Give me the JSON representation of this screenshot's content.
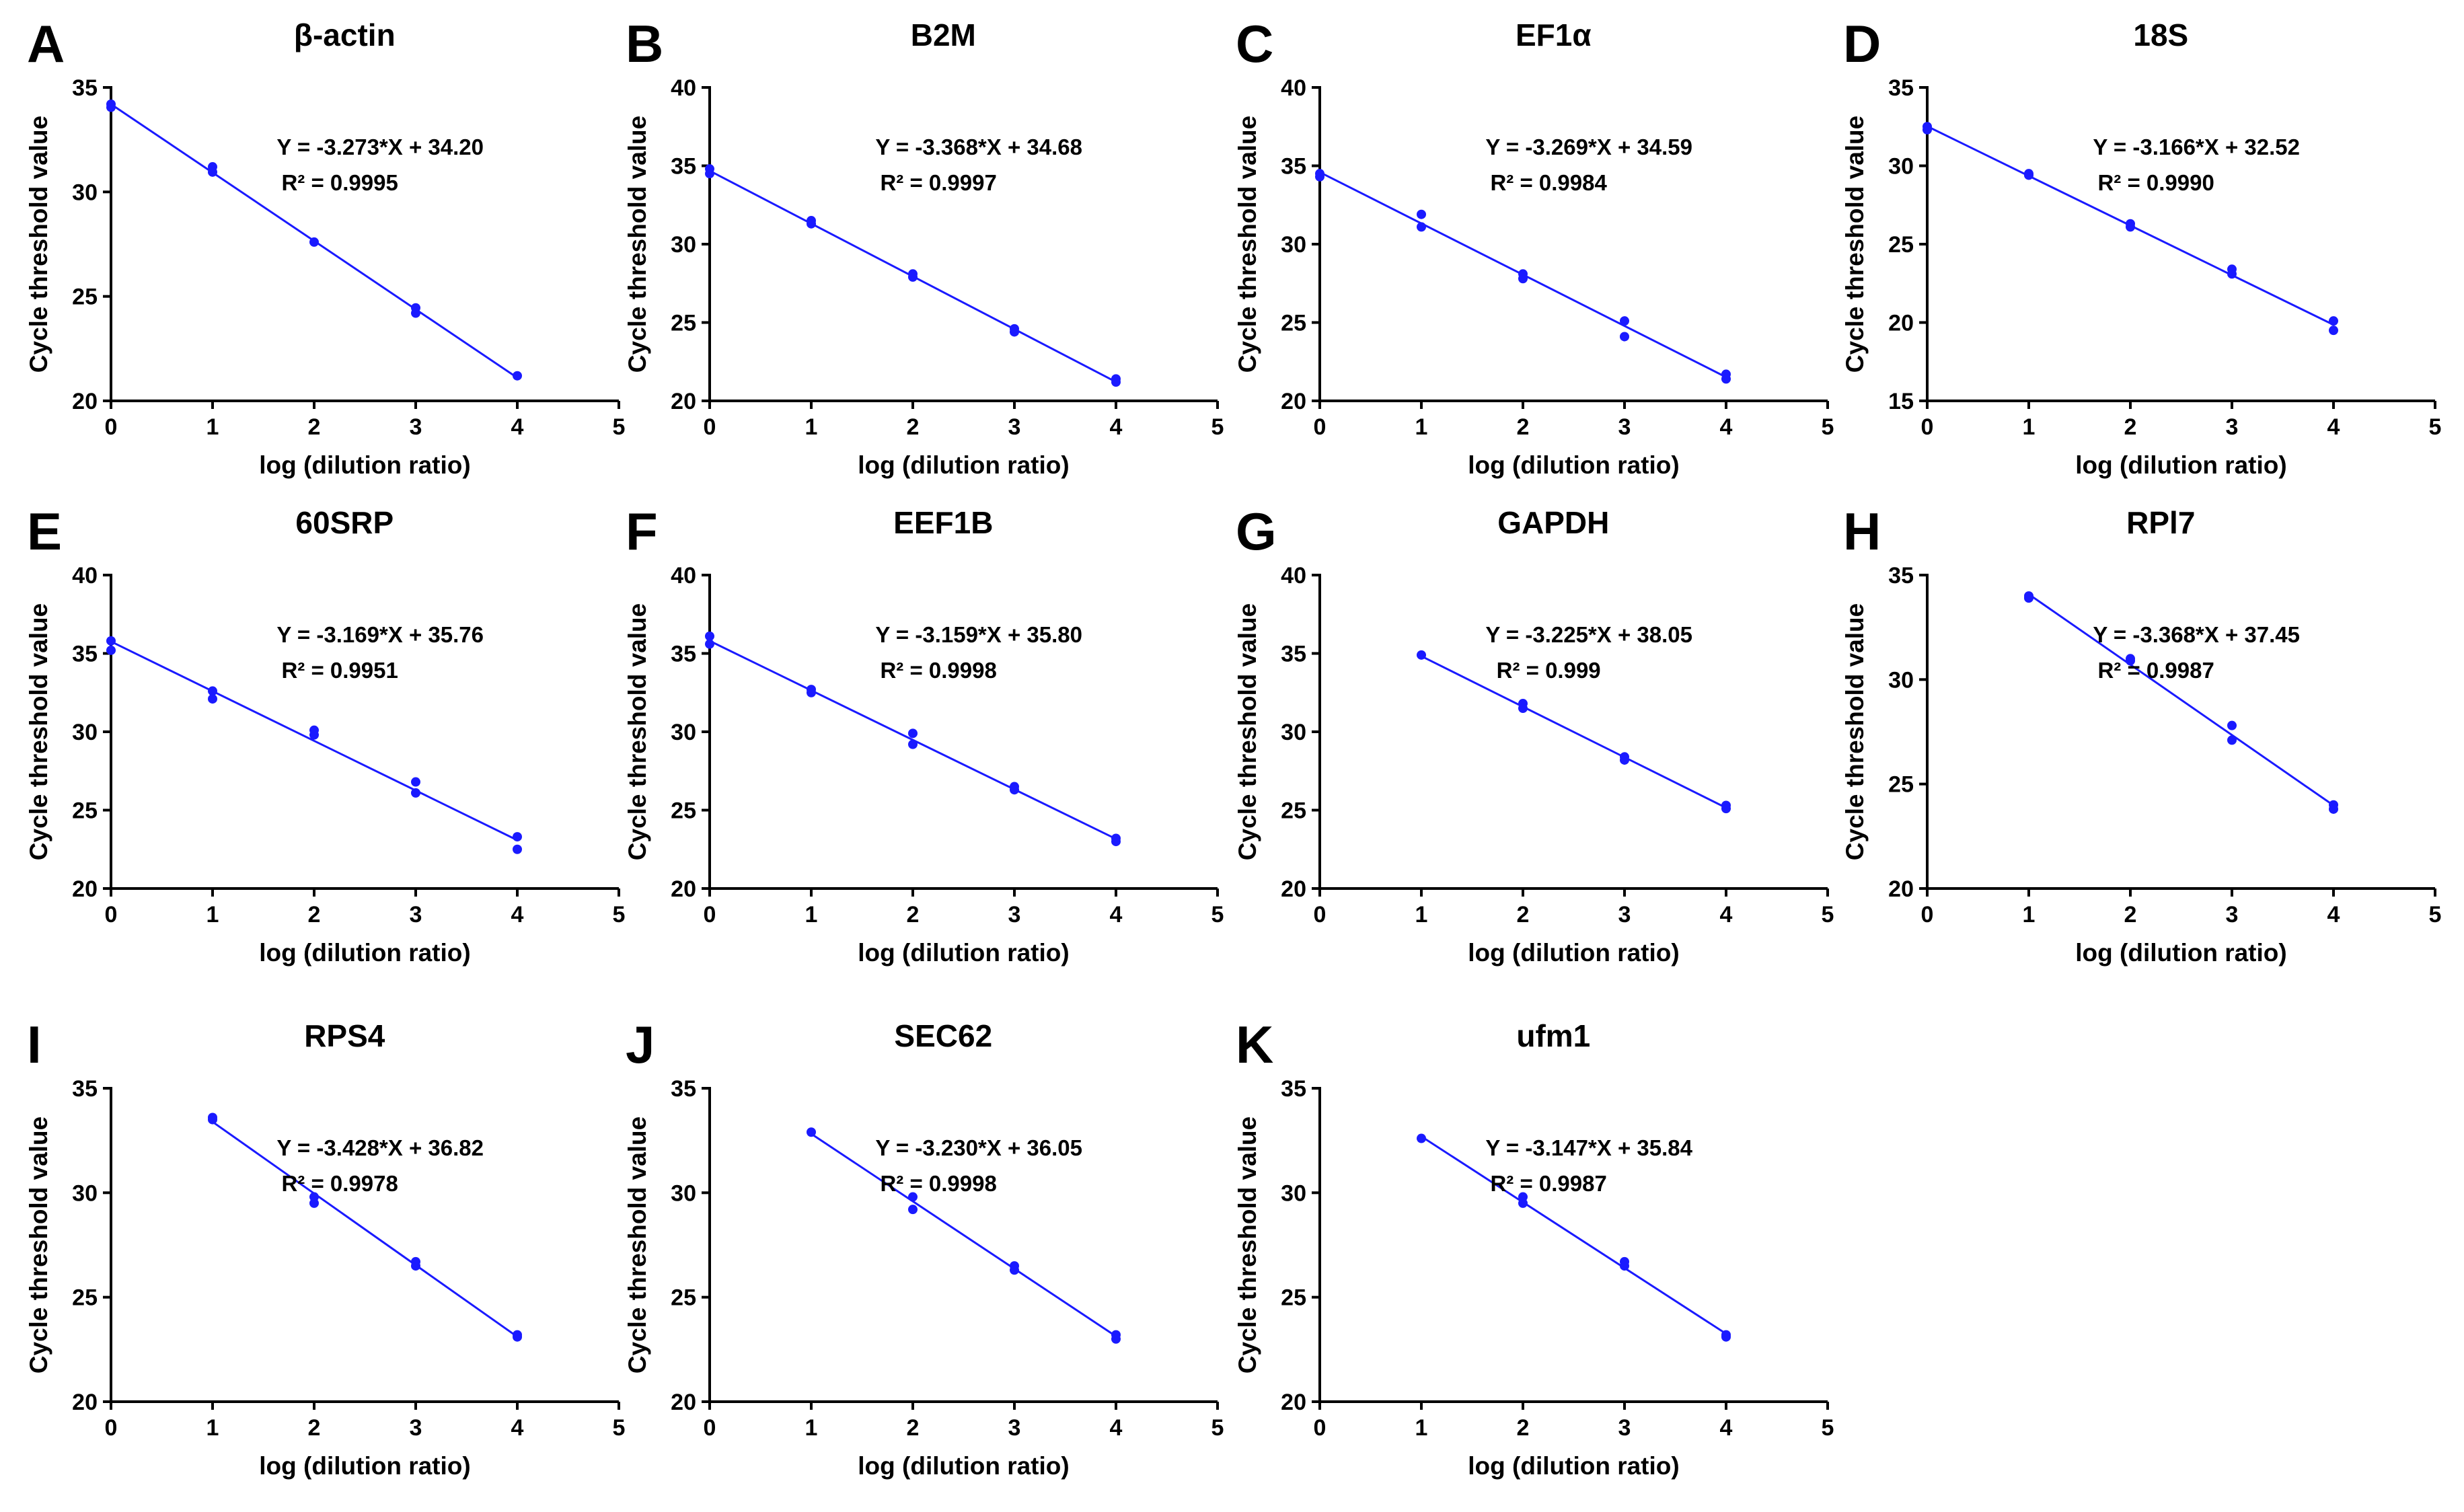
{
  "colors": {
    "series": "#1a1aff",
    "axis": "#000000",
    "background": "#ffffff"
  },
  "chart_data": [
    {
      "letter": "A",
      "type": "scatter",
      "title": "β-actin",
      "xlabel": "log (dilution ratio)",
      "ylabel": "Cycle threshold value",
      "xlim": [
        0,
        5
      ],
      "ylim": [
        20,
        35
      ],
      "xticks": [
        "0",
        "1",
        "2",
        "3",
        "4",
        "5"
      ],
      "yticks": [
        "20",
        "25",
        "30",
        "35"
      ],
      "equation": "Y = -3.273*X + 34.20",
      "r2": "R² = 0.9995",
      "fit": {
        "slope": -3.273,
        "intercept": 34.2,
        "x_range": [
          0,
          4
        ]
      },
      "points": [
        [
          0,
          34.2
        ],
        [
          0,
          34.05
        ],
        [
          1,
          31.2
        ],
        [
          1,
          30.95
        ],
        [
          2,
          27.6
        ],
        [
          3,
          24.45
        ],
        [
          3,
          24.2
        ],
        [
          4,
          21.2
        ]
      ]
    },
    {
      "letter": "B",
      "type": "scatter",
      "title": "B2M",
      "xlabel": "log (dilution ratio)",
      "ylabel": "Cycle threshold value",
      "xlim": [
        0,
        5
      ],
      "ylim": [
        20,
        40
      ],
      "xticks": [
        "0",
        "1",
        "2",
        "3",
        "4",
        "5"
      ],
      "yticks": [
        "20",
        "25",
        "30",
        "35",
        "40"
      ],
      "equation": "Y = -3.368*X + 34.68",
      "r2": "R² = 0.9997",
      "fit": {
        "slope": -3.368,
        "intercept": 34.68,
        "x_range": [
          0,
          4
        ]
      },
      "points": [
        [
          0,
          34.8
        ],
        [
          0,
          34.5
        ],
        [
          1,
          31.5
        ],
        [
          1,
          31.3
        ],
        [
          2,
          28.1
        ],
        [
          2,
          27.9
        ],
        [
          3,
          24.6
        ],
        [
          3,
          24.4
        ],
        [
          4,
          21.4
        ],
        [
          4,
          21.2
        ]
      ]
    },
    {
      "letter": "C",
      "type": "scatter",
      "title": "EF1α",
      "xlabel": "log (dilution ratio)",
      "ylabel": "Cycle threshold value",
      "xlim": [
        0,
        5
      ],
      "ylim": [
        20,
        40
      ],
      "xticks": [
        "0",
        "1",
        "2",
        "3",
        "4",
        "5"
      ],
      "yticks": [
        "20",
        "25",
        "30",
        "35",
        "40"
      ],
      "equation": "Y = -3.269*X + 34.59",
      "r2": "R² = 0.9984",
      "fit": {
        "slope": -3.269,
        "intercept": 34.59,
        "x_range": [
          0,
          4
        ]
      },
      "points": [
        [
          0,
          34.5
        ],
        [
          0,
          34.3
        ],
        [
          1,
          31.9
        ],
        [
          1,
          31.1
        ],
        [
          2,
          28.1
        ],
        [
          2,
          27.8
        ],
        [
          3,
          25.1
        ],
        [
          3,
          24.1
        ],
        [
          4,
          21.7
        ],
        [
          4,
          21.4
        ]
      ]
    },
    {
      "letter": "D",
      "type": "scatter",
      "title": "18S",
      "xlabel": "log (dilution ratio)",
      "ylabel": "Cycle threshold value",
      "xlim": [
        0,
        5
      ],
      "ylim": [
        15,
        35
      ],
      "xticks": [
        "0",
        "1",
        "2",
        "3",
        "4",
        "5"
      ],
      "yticks": [
        "15",
        "20",
        "25",
        "30",
        "35"
      ],
      "equation": "Y = -3.166*X + 32.52",
      "r2": "R² = 0.9990",
      "fit": {
        "slope": -3.166,
        "intercept": 32.52,
        "x_range": [
          0,
          4
        ]
      },
      "points": [
        [
          0,
          32.5
        ],
        [
          0,
          32.3
        ],
        [
          1,
          29.5
        ],
        [
          1,
          29.4
        ],
        [
          2,
          26.3
        ],
        [
          2,
          26.1
        ],
        [
          3,
          23.4
        ],
        [
          3,
          23.1
        ],
        [
          4,
          20.1
        ],
        [
          4,
          19.5
        ]
      ]
    },
    {
      "letter": "E",
      "type": "scatter",
      "title": "60SRP",
      "xlabel": "log (dilution ratio)",
      "ylabel": "Cycle threshold value",
      "xlim": [
        0,
        5
      ],
      "ylim": [
        20,
        40
      ],
      "xticks": [
        "0",
        "1",
        "2",
        "3",
        "4",
        "5"
      ],
      "yticks": [
        "20",
        "25",
        "30",
        "35",
        "40"
      ],
      "equation": "Y = -3.169*X + 35.76",
      "r2": "R² = 0.9951",
      "fit": {
        "slope": -3.169,
        "intercept": 35.76,
        "x_range": [
          0,
          4
        ]
      },
      "points": [
        [
          0,
          35.8
        ],
        [
          0,
          35.2
        ],
        [
          1,
          32.6
        ],
        [
          1,
          32.1
        ],
        [
          2,
          30.1
        ],
        [
          2,
          29.8
        ],
        [
          3,
          26.8
        ],
        [
          3,
          26.1
        ],
        [
          4,
          23.3
        ],
        [
          4,
          22.5
        ]
      ]
    },
    {
      "letter": "F",
      "type": "scatter",
      "title": "EEF1B",
      "xlabel": "log (dilution ratio)",
      "ylabel": "Cycle threshold value",
      "xlim": [
        0,
        5
      ],
      "ylim": [
        20,
        40
      ],
      "xticks": [
        "0",
        "1",
        "2",
        "3",
        "4",
        "5"
      ],
      "yticks": [
        "20",
        "25",
        "30",
        "35",
        "40"
      ],
      "equation": "Y = -3.159*X + 35.80",
      "r2": "R² = 0.9998",
      "fit": {
        "slope": -3.159,
        "intercept": 35.8,
        "x_range": [
          0,
          4
        ]
      },
      "points": [
        [
          0,
          36.1
        ],
        [
          0,
          35.6
        ],
        [
          1,
          32.7
        ],
        [
          1,
          32.5
        ],
        [
          2,
          29.9
        ],
        [
          2,
          29.2
        ],
        [
          3,
          26.5
        ],
        [
          3,
          26.3
        ],
        [
          4,
          23.2
        ],
        [
          4,
          23.0
        ]
      ]
    },
    {
      "letter": "G",
      "type": "scatter",
      "title": "GAPDH",
      "xlabel": "log (dilution ratio)",
      "ylabel": "Cycle threshold value",
      "xlim": [
        0,
        5
      ],
      "ylim": [
        20,
        40
      ],
      "xticks": [
        "0",
        "1",
        "2",
        "3",
        "4",
        "5"
      ],
      "yticks": [
        "20",
        "25",
        "30",
        "35",
        "40"
      ],
      "equation": "Y = -3.225*X + 38.05",
      "r2": "R² = 0.999",
      "fit": {
        "slope": -3.225,
        "intercept": 38.05,
        "x_range": [
          1,
          4
        ]
      },
      "points": [
        [
          1,
          34.9
        ],
        [
          2,
          31.8
        ],
        [
          2,
          31.5
        ],
        [
          3,
          28.4
        ],
        [
          3,
          28.2
        ],
        [
          4,
          25.3
        ],
        [
          4,
          25.1
        ]
      ]
    },
    {
      "letter": "H",
      "type": "scatter",
      "title": "RPl7",
      "xlabel": "log (dilution ratio)",
      "ylabel": "Cycle threshold value",
      "xlim": [
        0,
        5
      ],
      "ylim": [
        20,
        35
      ],
      "xticks": [
        "0",
        "1",
        "2",
        "3",
        "4",
        "5"
      ],
      "yticks": [
        "20",
        "25",
        "30",
        "35"
      ],
      "equation": "Y = -3.368*X + 37.45",
      "r2": "R² = 0.9987",
      "fit": {
        "slope": -3.368,
        "intercept": 37.45,
        "x_range": [
          1,
          4
        ]
      },
      "points": [
        [
          1,
          34.0
        ],
        [
          1,
          33.9
        ],
        [
          2,
          31.0
        ],
        [
          2,
          30.9
        ],
        [
          3,
          27.8
        ],
        [
          3,
          27.1
        ],
        [
          4,
          24.0
        ],
        [
          4,
          23.8
        ]
      ]
    },
    {
      "letter": "I",
      "type": "scatter",
      "title": "RPS4",
      "xlabel": "log (dilution ratio)",
      "ylabel": "Cycle threshold value",
      "xlim": [
        0,
        5
      ],
      "ylim": [
        20,
        35
      ],
      "xticks": [
        "0",
        "1",
        "2",
        "3",
        "4",
        "5"
      ],
      "yticks": [
        "20",
        "25",
        "30",
        "35"
      ],
      "equation": "Y = -3.428*X + 36.82",
      "r2": "R² = 0.9978",
      "fit": {
        "slope": -3.428,
        "intercept": 36.82,
        "x_range": [
          1,
          4
        ]
      },
      "points": [
        [
          1,
          33.6
        ],
        [
          1,
          33.5
        ],
        [
          2,
          29.8
        ],
        [
          2,
          29.5
        ],
        [
          3,
          26.7
        ],
        [
          3,
          26.5
        ],
        [
          4,
          23.2
        ],
        [
          4,
          23.1
        ]
      ]
    },
    {
      "letter": "J",
      "type": "scatter",
      "title": "SEC62",
      "xlabel": "log (dilution ratio)",
      "ylabel": "Cycle threshold value",
      "xlim": [
        0,
        5
      ],
      "ylim": [
        20,
        35
      ],
      "xticks": [
        "0",
        "1",
        "2",
        "3",
        "4",
        "5"
      ],
      "yticks": [
        "20",
        "25",
        "30",
        "35"
      ],
      "equation": "Y = -3.230*X + 36.05",
      "r2": "R² = 0.9998",
      "fit": {
        "slope": -3.23,
        "intercept": 36.05,
        "x_range": [
          1,
          4
        ]
      },
      "points": [
        [
          1,
          32.9
        ],
        [
          2,
          29.8
        ],
        [
          2,
          29.2
        ],
        [
          3,
          26.5
        ],
        [
          3,
          26.3
        ],
        [
          4,
          23.2
        ],
        [
          4,
          23.0
        ]
      ]
    },
    {
      "letter": "K",
      "type": "scatter",
      "title": "ufm1",
      "xlabel": "log (dilution ratio)",
      "ylabel": "Cycle threshold value",
      "xlim": [
        0,
        5
      ],
      "ylim": [
        20,
        35
      ],
      "xticks": [
        "0",
        "1",
        "2",
        "3",
        "4",
        "5"
      ],
      "yticks": [
        "20",
        "25",
        "30",
        "35"
      ],
      "equation": "Y = -3.147*X + 35.84",
      "r2": "R² = 0.9987",
      "fit": {
        "slope": -3.147,
        "intercept": 35.84,
        "x_range": [
          1,
          4
        ]
      },
      "points": [
        [
          1,
          32.6
        ],
        [
          2,
          29.8
        ],
        [
          2,
          29.5
        ],
        [
          3,
          26.7
        ],
        [
          3,
          26.5
        ],
        [
          4,
          23.2
        ],
        [
          4,
          23.1
        ]
      ]
    }
  ]
}
